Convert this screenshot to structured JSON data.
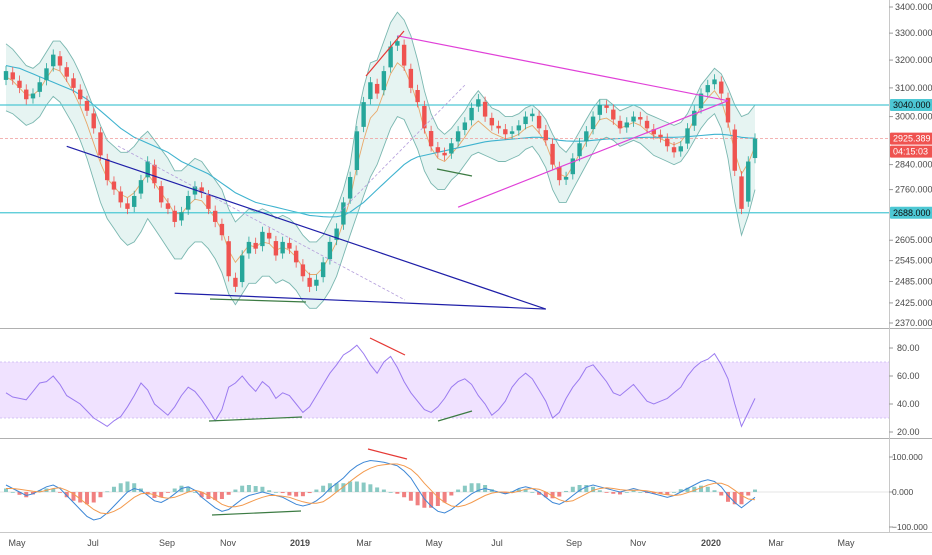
{
  "colors": {
    "bull": "#26a69a",
    "bear": "#ef5350",
    "band_fill": "#e6f4f2",
    "band_line": "#7ab7b0",
    "basis": "#e8a86a",
    "ma_long": "#3fb3cf",
    "support_line": "#4dc8d4",
    "pink": "#e040d8",
    "blue": "#1f1fa8",
    "rsi_band": "#f0e2ff",
    "rsi_line": "#9b7bf0",
    "macd_line": "#3d87d6",
    "signal_line": "#f39a4e",
    "green_div": "#3c7b43",
    "red_div": "#e53935",
    "axis_text": "#4a4a4a",
    "hist_pos": "#89c9c3",
    "hist_neg": "#f08080"
  },
  "chart_data": [
    {
      "type": "candlestick",
      "panel": "price",
      "title": "",
      "x_tick_labels": [
        "May",
        "Jul",
        "Sep",
        "Nov",
        "2019",
        "Mar",
        "May",
        "Jul",
        "Sep",
        "Nov",
        "2020",
        "Mar",
        "May"
      ],
      "y_tick_labels": [
        "3400.000",
        "3300.000",
        "3200.000",
        "3100.000",
        "3000.000",
        "2840.000",
        "2760.000",
        "2605.000",
        "2545.000",
        "2485.000",
        "2425.000",
        "2370.000"
      ],
      "ylim": [
        2370,
        3400
      ],
      "axis_scale": "log",
      "grid": true,
      "price_labels": [
        {
          "label": "3040.000",
          "kind": "level"
        },
        {
          "label": "2925.389",
          "kind": "last"
        },
        {
          "label": "04:15:03",
          "kind": "countdown"
        },
        {
          "label": "2688.000",
          "kind": "level"
        }
      ],
      "horizontal_levels": [
        3040,
        2925.389,
        2688
      ],
      "closes": [
        3160,
        3130,
        3100,
        3060,
        3080,
        3120,
        3170,
        3220,
        3180,
        3140,
        3100,
        3060,
        3020,
        2960,
        2870,
        2790,
        2760,
        2720,
        2700,
        2740,
        2790,
        2850,
        2780,
        2720,
        2700,
        2660,
        2690,
        2740,
        2770,
        2750,
        2700,
        2660,
        2620,
        2500,
        2470,
        2560,
        2600,
        2580,
        2630,
        2610,
        2560,
        2600,
        2580,
        2540,
        2500,
        2470,
        2490,
        2540,
        2600,
        2640,
        2720,
        2800,
        2950,
        3050,
        3120,
        3080,
        3160,
        3250,
        3270,
        3180,
        3100,
        3050,
        2960,
        2900,
        2880,
        2870,
        2910,
        2950,
        2980,
        3030,
        3060,
        3000,
        2970,
        2960,
        2940,
        2950,
        2970,
        3000,
        3010,
        2960,
        2920,
        2840,
        2790,
        2800,
        2860,
        2910,
        2950,
        3000,
        3040,
        3030,
        2990,
        2960,
        2980,
        3000,
        2990,
        2960,
        2940,
        2930,
        2900,
        2880,
        2900,
        2960,
        3020,
        3080,
        3110,
        3130,
        3080,
        2980,
        2820,
        2700,
        2850,
        2925.389
      ],
      "series": [
        {
          "name": "",
          "kind": "bollinger_upper",
          "values": [
            3260,
            3240,
            3210,
            3180,
            3170,
            3190,
            3230,
            3270,
            3270,
            3240,
            3200,
            3150,
            3090,
            3030,
            2970,
            2920,
            2900,
            2880,
            2880,
            2900,
            2930,
            2950,
            2920,
            2890,
            2860,
            2820,
            2820,
            2840,
            2860,
            2850,
            2820,
            2790,
            2760,
            2700,
            2660,
            2680,
            2700,
            2690,
            2700,
            2690,
            2670,
            2680,
            2670,
            2650,
            2620,
            2600,
            2600,
            2620,
            2660,
            2700,
            2760,
            2840,
            2990,
            3100,
            3190,
            3200,
            3270,
            3340,
            3380,
            3350,
            3290,
            3200,
            3090,
            3010,
            2960,
            2940,
            2960,
            2990,
            3020,
            3060,
            3090,
            3060,
            3030,
            3020,
            3000,
            3000,
            3010,
            3030,
            3040,
            3020,
            2990,
            2940,
            2900,
            2880,
            2910,
            2950,
            2990,
            3030,
            3060,
            3060,
            3040,
            3020,
            3030,
            3040,
            3030,
            3010,
            3000,
            2990,
            2980,
            2970,
            2980,
            3010,
            3060,
            3110,
            3140,
            3170,
            3150,
            3100,
            3040,
            3000,
            3010,
            3040
          ]
        },
        {
          "name": "",
          "kind": "bollinger_lower",
          "values": [
            3020,
            3010,
            2990,
            2970,
            2980,
            3000,
            3040,
            3070,
            3050,
            3010,
            2970,
            2920,
            2860,
            2790,
            2720,
            2670,
            2640,
            2610,
            2590,
            2600,
            2630,
            2670,
            2640,
            2610,
            2580,
            2550,
            2550,
            2580,
            2600,
            2600,
            2580,
            2550,
            2510,
            2450,
            2420,
            2450,
            2480,
            2480,
            2500,
            2500,
            2480,
            2490,
            2480,
            2460,
            2430,
            2410,
            2410,
            2430,
            2460,
            2500,
            2560,
            2620,
            2680,
            2740,
            2800,
            2840,
            2900,
            2960,
            3000,
            2990,
            2940,
            2890,
            2820,
            2780,
            2760,
            2760,
            2790,
            2810,
            2840,
            2870,
            2880,
            2870,
            2860,
            2850,
            2850,
            2860,
            2870,
            2890,
            2900,
            2870,
            2830,
            2760,
            2720,
            2720,
            2760,
            2800,
            2840,
            2880,
            2920,
            2930,
            2920,
            2900,
            2910,
            2920,
            2910,
            2890,
            2870,
            2860,
            2850,
            2840,
            2850,
            2880,
            2920,
            2960,
            2990,
            3010,
            2960,
            2860,
            2720,
            2620,
            2680,
            2760
          ]
        },
        {
          "name": "",
          "kind": "ma_long",
          "values": [
            3180,
            3175,
            3170,
            3160,
            3150,
            3140,
            3130,
            3120,
            3110,
            3100,
            3090,
            3075,
            3060,
            3040,
            3020,
            3000,
            2980,
            2960,
            2945,
            2930,
            2920,
            2910,
            2900,
            2890,
            2880,
            2865,
            2850,
            2840,
            2830,
            2820,
            2810,
            2795,
            2780,
            2765,
            2750,
            2740,
            2730,
            2720,
            2715,
            2710,
            2705,
            2700,
            2695,
            2690,
            2685,
            2680,
            2678,
            2676,
            2675,
            2676,
            2680,
            2690,
            2705,
            2720,
            2740,
            2760,
            2780,
            2800,
            2820,
            2840,
            2855,
            2865,
            2870,
            2875,
            2880,
            2885,
            2890,
            2895,
            2900,
            2905,
            2910,
            2915,
            2918,
            2920,
            2922,
            2924,
            2926,
            2928,
            2930,
            2930,
            2928,
            2925,
            2920,
            2918,
            2917,
            2917,
            2918,
            2920,
            2922,
            2924,
            2925,
            2926,
            2927,
            2928,
            2929,
            2930,
            2930,
            2930,
            2930,
            2930,
            2931,
            2932,
            2934,
            2936,
            2938,
            2940,
            2940,
            2938,
            2934,
            2930,
            2928,
            2927
          ]
        }
      ],
      "annotations": [
        {
          "kind": "falling_wedge_upper",
          "from": [
            9,
            2900
          ],
          "to": [
            80,
            2408
          ],
          "color": "blue"
        },
        {
          "kind": "falling_wedge_lower",
          "from": [
            25,
            2452
          ],
          "to": [
            80,
            2408
          ],
          "color": "blue"
        },
        {
          "kind": "descending_line",
          "from": [
            58,
            3290
          ],
          "to": [
            107,
            3055
          ],
          "color": "pink"
        },
        {
          "kind": "ascending_line",
          "from": [
            67,
            2705
          ],
          "to": [
            107,
            3055
          ],
          "color": "pink"
        },
        {
          "kind": "bullish_divergence",
          "panel": "price",
          "color": "green"
        },
        {
          "kind": "bearish_divergence",
          "panel": "price",
          "color": "red"
        }
      ]
    },
    {
      "type": "line",
      "panel": "rsi",
      "title": "",
      "y_tick_labels": [
        "80.00",
        "60.00",
        "40.00",
        "20.00"
      ],
      "ylim": [
        15,
        88
      ],
      "band": [
        30,
        70
      ],
      "series": [
        {
          "name": "",
          "values": [
            48,
            45,
            44,
            43,
            49,
            55,
            56,
            60,
            54,
            46,
            43,
            40,
            35,
            30,
            27,
            24,
            28,
            31,
            38,
            46,
            55,
            50,
            40,
            36,
            32,
            38,
            46,
            52,
            49,
            43,
            36,
            28,
            36,
            52,
            55,
            60,
            54,
            49,
            56,
            52,
            44,
            48,
            46,
            40,
            34,
            38,
            46,
            54,
            62,
            68,
            75,
            78,
            82,
            76,
            68,
            62,
            70,
            74,
            66,
            56,
            48,
            42,
            36,
            34,
            38,
            44,
            52,
            56,
            58,
            54,
            46,
            40,
            32,
            36,
            42,
            52,
            58,
            62,
            58,
            50,
            42,
            30,
            34,
            44,
            52,
            58,
            66,
            68,
            62,
            56,
            48,
            46,
            50,
            54,
            48,
            42,
            40,
            42,
            44,
            48,
            52,
            60,
            66,
            70,
            72,
            76,
            68,
            58,
            40,
            24,
            34,
            44
          ]
        }
      ],
      "annotations": [
        {
          "kind": "bullish_divergence",
          "color": "green"
        },
        {
          "kind": "bearish_divergence",
          "color": "red"
        }
      ]
    },
    {
      "type": "line",
      "panel": "macd",
      "title": "",
      "y_tick_labels": [
        "100.000",
        "0.000",
        "−100.000"
      ],
      "ylim": [
        -110,
        115
      ],
      "series": [
        {
          "name": "",
          "kind": "macd",
          "values": [
            20,
            10,
            0,
            -10,
            -5,
            5,
            15,
            20,
            10,
            -10,
            -30,
            -50,
            -70,
            -80,
            -75,
            -60,
            -40,
            -20,
            0,
            10,
            5,
            -10,
            -25,
            -30,
            -20,
            -5,
            10,
            15,
            5,
            -15,
            -30,
            -45,
            -55,
            -50,
            -35,
            -20,
            -10,
            -5,
            0,
            -5,
            -10,
            -15,
            -25,
            -35,
            -40,
            -35,
            -25,
            -10,
            10,
            25,
            40,
            60,
            75,
            85,
            90,
            88,
            85,
            80,
            75,
            60,
            40,
            10,
            -20,
            -40,
            -55,
            -60,
            -50,
            -35,
            -20,
            -5,
            5,
            10,
            5,
            0,
            -5,
            0,
            10,
            15,
            10,
            0,
            -15,
            -30,
            -35,
            -25,
            -10,
            5,
            15,
            20,
            15,
            10,
            5,
            0,
            5,
            10,
            5,
            0,
            -5,
            -10,
            -15,
            -10,
            0,
            10,
            20,
            30,
            35,
            30,
            15,
            -10,
            -30,
            -45,
            -30,
            -15
          ]
        },
        {
          "name": "",
          "kind": "signal",
          "values": [
            10,
            10,
            8,
            5,
            2,
            0,
            5,
            10,
            12,
            5,
            -5,
            -20,
            -35,
            -50,
            -60,
            -62,
            -55,
            -45,
            -30,
            -15,
            -5,
            -3,
            -8,
            -15,
            -18,
            -15,
            -8,
            0,
            5,
            0,
            -10,
            -22,
            -35,
            -42,
            -42,
            -38,
            -30,
            -22,
            -15,
            -10,
            -10,
            -12,
            -15,
            -22,
            -28,
            -32,
            -32,
            -28,
            -15,
            0,
            15,
            30,
            45,
            58,
            68,
            75,
            78,
            80,
            80,
            75,
            65,
            48,
            25,
            5,
            -15,
            -30,
            -40,
            -42,
            -38,
            -30,
            -20,
            -10,
            -3,
            0,
            0,
            -2,
            2,
            8,
            10,
            8,
            0,
            -12,
            -22,
            -28,
            -25,
            -15,
            -5,
            5,
            10,
            12,
            10,
            7,
            5,
            5,
            5,
            3,
            0,
            -5,
            -8,
            -10,
            -8,
            -2,
            5,
            12,
            20,
            25,
            25,
            18,
            5,
            -10,
            -20,
            -22
          ]
        }
      ],
      "annotations": [
        {
          "kind": "bullish_divergence",
          "color": "green"
        },
        {
          "kind": "bearish_divergence",
          "color": "red"
        }
      ]
    }
  ]
}
